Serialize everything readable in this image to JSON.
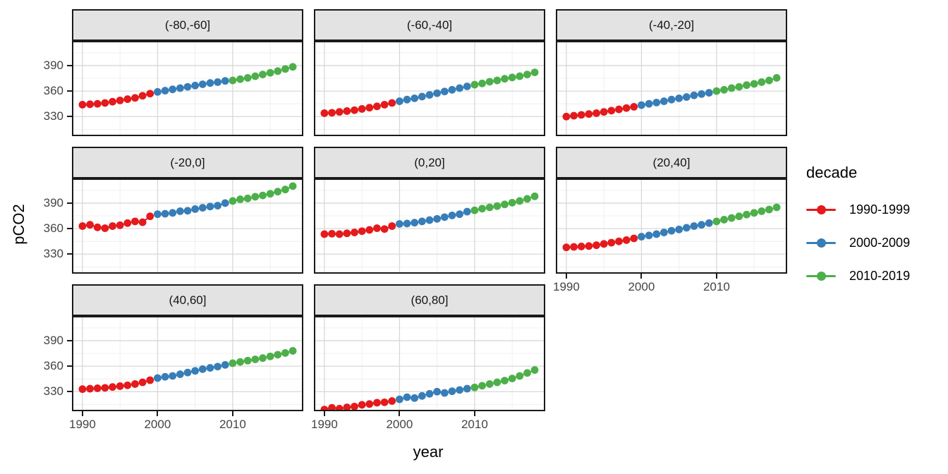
{
  "chart_data": {
    "type": "scatter",
    "title": "",
    "xlabel": "year",
    "ylabel": "pCO2",
    "x_ticks": [
      1990,
      2000,
      2010
    ],
    "y_ticks": [
      330,
      360,
      390
    ],
    "x_minor_gridlines": [
      1995,
      2005,
      2015
    ],
    "y_major_gridlines": [
      330,
      360,
      390,
      420
    ],
    "y_minor_gridlines": [
      315,
      345,
      375,
      405
    ],
    "x_domain": [
      1988.6,
      2019.4
    ],
    "y_domain": [
      307,
      419
    ],
    "grid": true,
    "legend_position": "right",
    "facet_layout": {
      "columns": 3,
      "rows": 3
    },
    "years": [
      1990,
      1991,
      1992,
      1993,
      1994,
      1995,
      1996,
      1997,
      1998,
      1999,
      2000,
      2001,
      2002,
      2003,
      2004,
      2005,
      2006,
      2007,
      2008,
      2009,
      2010,
      2011,
      2012,
      2013,
      2014,
      2015,
      2016,
      2017,
      2018
    ],
    "legend": {
      "title": "decade",
      "entries": [
        {
          "label": "1990-1999",
          "color": "#E41A1C",
          "year_min": 1990,
          "year_max": 1999
        },
        {
          "label": "2000-2009",
          "color": "#377EB8",
          "year_min": 2000,
          "year_max": 2009
        },
        {
          "label": "2010-2019",
          "color": "#4DAF4A",
          "year_min": 2010,
          "year_max": 2019
        }
      ]
    },
    "facets": [
      {
        "label": "(-80,-60]",
        "values": [
          344,
          344.5,
          345,
          346,
          347.5,
          349,
          350.5,
          352,
          354.5,
          357,
          359,
          360.5,
          362,
          363.5,
          365,
          366.5,
          368,
          369.5,
          370.5,
          372,
          372.5,
          374,
          375.5,
          377.5,
          379.5,
          381.5,
          383.5,
          386,
          388.5
        ]
      },
      {
        "label": "(-60,-40]",
        "values": [
          334,
          334.5,
          335.5,
          336.5,
          337.5,
          339,
          340.5,
          342,
          344,
          346,
          348,
          350,
          351.5,
          353.5,
          355.5,
          357.5,
          359.5,
          361.5,
          363.5,
          365.5,
          367.5,
          369,
          371,
          372.5,
          374.5,
          376,
          377.5,
          379.5,
          382
        ]
      },
      {
        "label": "(-40,-20]",
        "values": [
          330,
          331,
          332,
          333,
          334,
          335.5,
          337,
          338.5,
          340,
          341.5,
          343.5,
          345,
          346.5,
          348,
          350,
          351.5,
          353,
          355,
          356.5,
          358,
          360,
          361.5,
          363.5,
          365,
          367,
          368.5,
          370.5,
          372.5,
          375.5
        ]
      },
      {
        "label": "(-20,0]",
        "values": [
          363,
          364.5,
          361.5,
          360.5,
          363,
          364,
          366.5,
          368.5,
          367.5,
          374.5,
          377,
          377.5,
          378.5,
          380.5,
          381,
          383,
          384.5,
          386,
          387,
          390,
          392.5,
          394.5,
          395.5,
          397.5,
          399,
          401,
          403.5,
          406,
          410
        ]
      },
      {
        "label": "(0,20]",
        "values": [
          353.5,
          354,
          353.5,
          354.5,
          355.5,
          357,
          358.5,
          360.5,
          359.5,
          363,
          365.5,
          366,
          367,
          368.5,
          370,
          371.5,
          373.5,
          375.5,
          377,
          380,
          381.5,
          383.5,
          385,
          386.5,
          388.5,
          390.5,
          392.5,
          395,
          398
        ]
      },
      {
        "label": "(20,40]",
        "values": [
          338,
          338.5,
          339,
          339.5,
          340.5,
          342,
          343.5,
          345,
          346.5,
          348.5,
          350.5,
          352,
          353.5,
          355.5,
          357.5,
          359,
          361,
          363,
          364.5,
          366.5,
          368.5,
          370.5,
          372.5,
          374.5,
          376.5,
          378.5,
          380.5,
          382.5,
          385
        ]
      },
      {
        "label": "(40,60]",
        "values": [
          333,
          333.5,
          334,
          334.5,
          335.5,
          336.5,
          337.5,
          339,
          341,
          343.5,
          346,
          347.5,
          348.5,
          350.5,
          352.5,
          354.5,
          356.5,
          358,
          359.5,
          361.5,
          363.5,
          365,
          366.5,
          368,
          369.5,
          371.5,
          373.5,
          375.5,
          378
        ]
      },
      {
        "label": "(60,80]",
        "values": [
          309,
          311,
          310,
          311.5,
          312.5,
          314.5,
          315.5,
          317,
          317.5,
          319,
          321,
          323.5,
          322.5,
          325,
          327.5,
          330,
          328.5,
          330.5,
          332,
          333.5,
          335,
          337,
          339,
          341,
          343,
          345.5,
          348.5,
          352,
          355.5
        ]
      }
    ],
    "style": {
      "strip_bg": "#E3E3E3",
      "panel_border": "#1a1a1a",
      "grid_major": "#d8d8d8",
      "grid_minor": "#ececec",
      "axis_text": "#454545",
      "point_radius": 5.4
    }
  }
}
